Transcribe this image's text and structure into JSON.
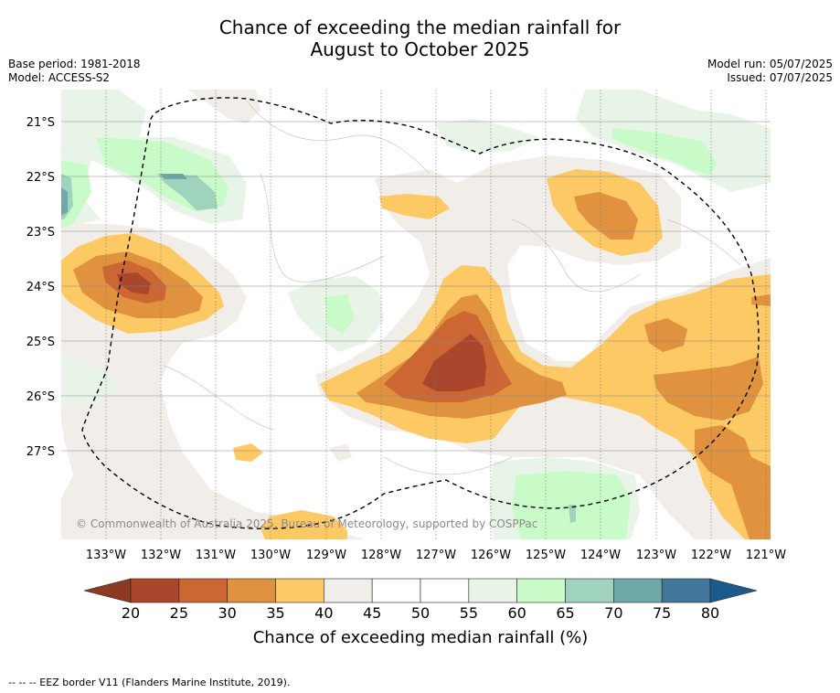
{
  "title": {
    "line1": "Chance of exceeding the median rainfall for",
    "line2": "August to October 2025"
  },
  "meta": {
    "base_period": "Base period: 1981-2018",
    "model": "Model: ACCESS-S2",
    "model_run": "Model run: 05/07/2025",
    "issued": "Issued: 07/07/2025"
  },
  "map": {
    "lon_labels": [
      "133°W",
      "132°W",
      "131°W",
      "130°W",
      "129°W",
      "128°W",
      "127°W",
      "126°W",
      "125°W",
      "124°W",
      "123°W",
      "122°W",
      "121°W"
    ],
    "lat_labels": [
      "21°S",
      "22°S",
      "23°S",
      "24°S",
      "25°S",
      "26°S",
      "27°S"
    ],
    "copyright": "© Commonwealth of Australia 2025, Bureau of Meteorology, supported by COSPPac"
  },
  "colorbar": {
    "ticks": [
      "20",
      "25",
      "30",
      "35",
      "40",
      "45",
      "50",
      "55",
      "60",
      "65",
      "70",
      "75",
      "80"
    ],
    "colors": [
      "#a9462b",
      "#cc6633",
      "#e0923f",
      "#fdc964",
      "#f1eee9",
      "#ffffff",
      "#ffffff",
      "#e8f4e8",
      "#c9fbc9",
      "#9fd3bc",
      "#6fa8a8",
      "#41789a"
    ],
    "under_color": "#8c3a22",
    "over_color": "#1d5a8c",
    "label": "Chance of exceeding median rainfall (%)"
  },
  "footer": "-- -- -- EEZ border V11 (Flanders Marine Institute, 2019)."
}
